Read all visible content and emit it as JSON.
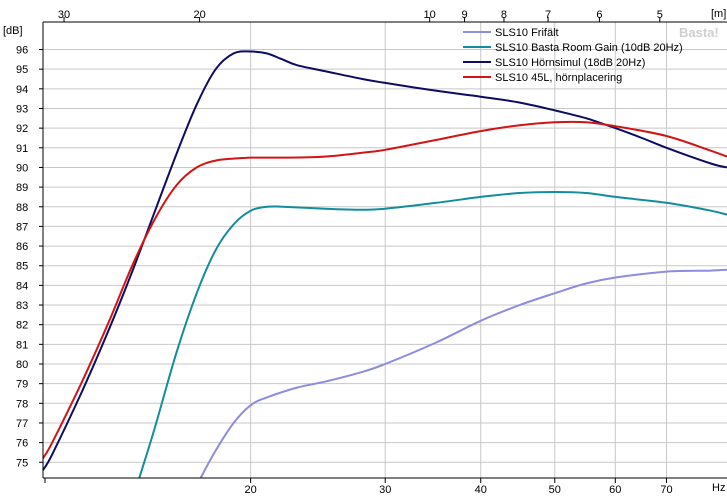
{
  "watermark": "Basta!",
  "chart_data": {
    "type": "line",
    "title": "",
    "ylabel": "[dB]",
    "x_unit": "Hz",
    "top_axis_unit": "[m]",
    "x_scale": "log",
    "xlim": [
      10.7,
      84
    ],
    "ylim": [
      74.2,
      97.4
    ],
    "grid": true,
    "legend_position": "top-right",
    "x_ticks": [
      20,
      30,
      40,
      50,
      60,
      70
    ],
    "y_ticks": [
      75,
      76,
      77,
      78,
      79,
      80,
      81,
      82,
      83,
      84,
      85,
      86,
      87,
      88,
      89,
      90,
      91,
      92,
      93,
      94,
      95,
      96
    ],
    "top_ticks": [
      {
        "label": "30",
        "hz": 11.4
      },
      {
        "label": "20",
        "hz": 17.15
      },
      {
        "label": "10",
        "hz": 34.3
      },
      {
        "label": "9",
        "hz": 38.1
      },
      {
        "label": "8",
        "hz": 42.9
      },
      {
        "label": "7",
        "hz": 49
      },
      {
        "label": "6",
        "hz": 57.2
      },
      {
        "label": "5",
        "hz": 68.6
      }
    ],
    "series": [
      {
        "name": "SLS10 Frifält",
        "color": "#8c8ce0",
        "x": [
          17.2,
          18,
          19,
          20,
          21,
          23,
          25,
          28,
          30,
          35,
          40,
          45,
          50,
          55,
          60,
          70,
          80,
          84
        ],
        "y": [
          74.2,
          75.6,
          77.0,
          77.9,
          78.3,
          78.8,
          79.1,
          79.6,
          80.0,
          81.1,
          82.2,
          83.0,
          83.6,
          84.1,
          84.4,
          84.7,
          84.75,
          84.8
        ]
      },
      {
        "name": "SLS10 Basta Room Gain (10dB 20Hz)",
        "color": "#138c9c",
        "x": [
          14.3,
          15,
          16,
          17,
          18,
          19,
          20,
          21,
          22,
          25,
          28,
          30,
          35,
          40,
          45,
          50,
          55,
          60,
          70,
          80,
          84
        ],
        "y": [
          74.2,
          76.8,
          80.6,
          83.6,
          85.8,
          87.1,
          87.8,
          88.0,
          88.0,
          87.9,
          87.85,
          87.9,
          88.2,
          88.5,
          88.7,
          88.75,
          88.7,
          88.5,
          88.2,
          87.8,
          87.6
        ]
      },
      {
        "name": "SLS10 Hörnsimul (18dB 20Hz)",
        "color": "#0c0c64",
        "x": [
          10.7,
          11,
          12,
          13,
          14,
          15,
          16,
          17,
          18,
          19,
          20,
          21,
          22,
          23,
          25,
          28,
          30,
          35,
          40,
          45,
          50,
          55,
          60,
          65,
          70,
          80,
          84
        ],
        "y": [
          74.6,
          75.4,
          78.5,
          81.6,
          84.7,
          87.8,
          90.7,
          93.2,
          95.0,
          95.8,
          95.9,
          95.8,
          95.5,
          95.2,
          94.9,
          94.5,
          94.3,
          93.9,
          93.6,
          93.3,
          92.9,
          92.5,
          92.0,
          91.5,
          91.0,
          90.2,
          90.0
        ]
      },
      {
        "name": "SLS10 45L, hörnplacering",
        "color": "#d21414",
        "x": [
          10.7,
          11,
          12,
          13,
          14,
          15,
          16,
          17,
          18,
          19,
          20,
          22,
          25,
          28,
          30,
          35,
          40,
          45,
          50,
          55,
          60,
          70,
          80,
          84
        ],
        "y": [
          75.2,
          76.0,
          79.0,
          82.0,
          85.0,
          87.4,
          89.1,
          90.0,
          90.35,
          90.45,
          90.5,
          90.5,
          90.55,
          90.75,
          90.9,
          91.4,
          91.85,
          92.15,
          92.3,
          92.3,
          92.1,
          91.6,
          90.85,
          90.55
        ]
      }
    ]
  }
}
